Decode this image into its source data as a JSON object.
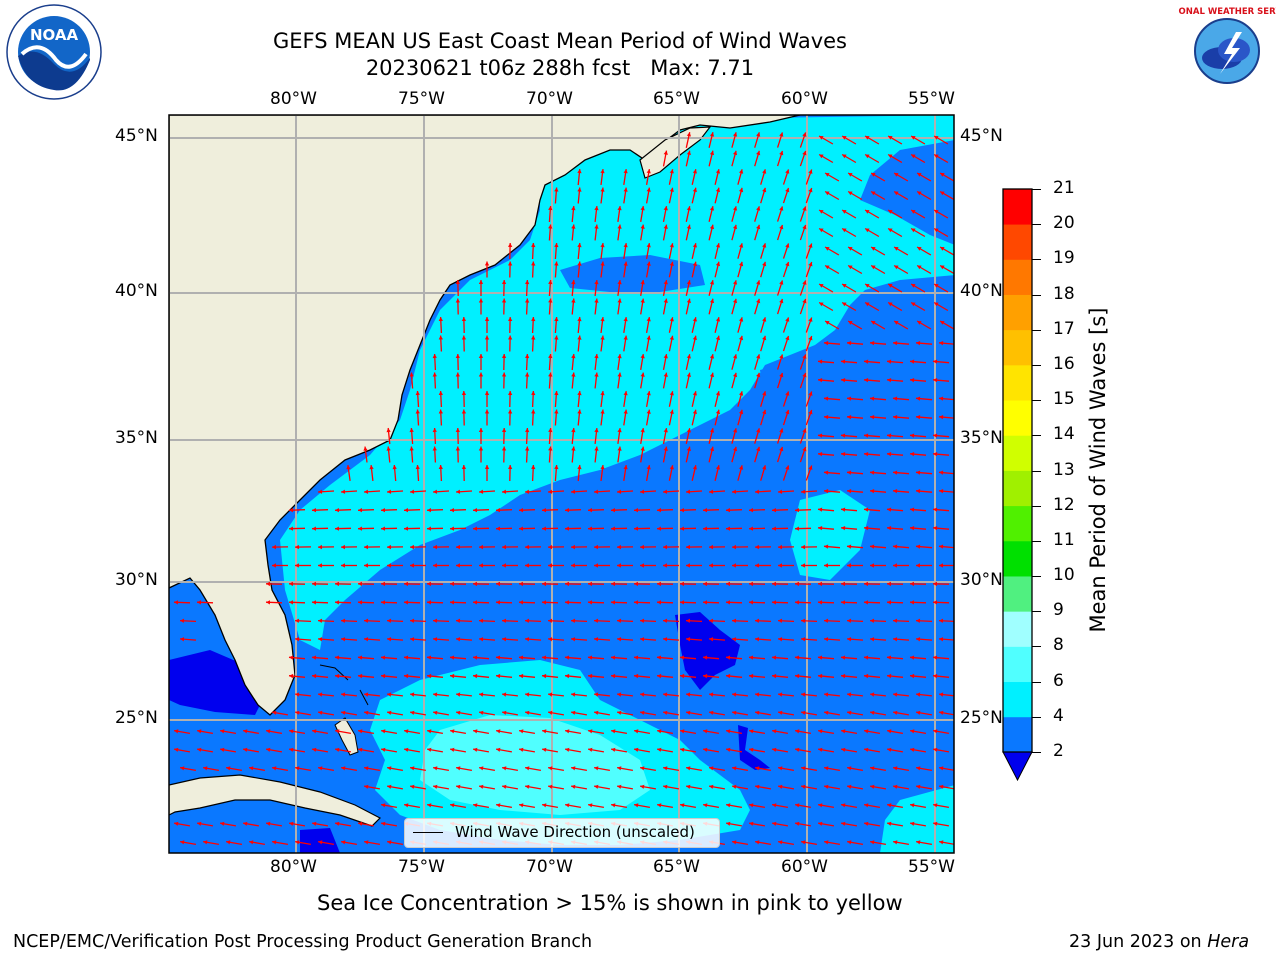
{
  "header": {
    "title_line1": "GEFS MEAN US East Coast Mean Period of Wind Waves",
    "title_line2": "20230621 t06z 288h fcst   Max: 7.71"
  },
  "logos": {
    "noaa_text": "NOAA",
    "nws_text": "NATIONAL WEATHER SERVICE"
  },
  "map": {
    "lon_labels": [
      "80°W",
      "75°W",
      "70°W",
      "65°W",
      "60°W",
      "55°W"
    ],
    "lat_labels": [
      "45°N",
      "40°N",
      "35°N",
      "30°N",
      "25°N"
    ],
    "legend_label": "Wind Wave Direction (unscaled)",
    "colors": {
      "land": "#efeedc",
      "level_lt2": "#0000ee",
      "level_2_4": "#0a78ff",
      "level_4_6": "#00f0ff",
      "level_6_8": "#50ffff",
      "arrow": "#ff0000"
    }
  },
  "colorbar": {
    "label": "Mean Period of Wind Waves [s]",
    "ticks": [
      "2",
      "4",
      "6",
      "8",
      "9",
      "10",
      "11",
      "12",
      "13",
      "14",
      "15",
      "16",
      "17",
      "18",
      "19",
      "20",
      "21"
    ],
    "colors": [
      "#0a78ff",
      "#00f0ff",
      "#50ffff",
      "#a0ffff",
      "#50f080",
      "#00e000",
      "#50f000",
      "#a0f000",
      "#d0ff00",
      "#ffff00",
      "#ffe400",
      "#ffc000",
      "#ffa000",
      "#ff7800",
      "#ff4800",
      "#ff0000"
    ],
    "extend_color": "#0000ee"
  },
  "footer": {
    "sea_ice_note": "Sea Ice Concentration > 15% is shown in pink to yellow",
    "branch": "NCEP/EMC/Verification Post Processing Product Generation Branch",
    "date": "23 Jun 2023 on ",
    "machine": "Hera"
  }
}
